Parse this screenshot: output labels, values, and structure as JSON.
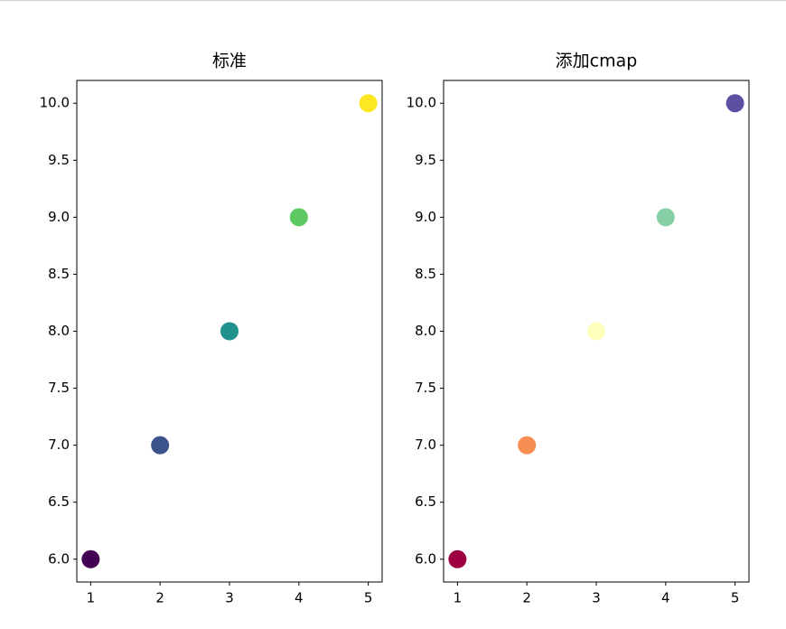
{
  "chart_data": [
    {
      "type": "scatter",
      "title": "标准",
      "x": [
        1,
        2,
        3,
        4,
        5
      ],
      "values": [
        6,
        7,
        8,
        9,
        10
      ],
      "colors": [
        "#440154",
        "#3b528b",
        "#21918c",
        "#5ec962",
        "#fde725"
      ],
      "xlim": [
        0.8,
        5.2
      ],
      "ylim": [
        5.8,
        10.2
      ],
      "xticks": [
        1,
        2,
        3,
        4,
        5
      ],
      "yticks": [
        {
          "value": 6,
          "label": "6.0"
        },
        {
          "value": 6.5,
          "label": "6.5"
        },
        {
          "value": 7,
          "label": "7.0"
        },
        {
          "value": 7.5,
          "label": "7.5"
        },
        {
          "value": 8,
          "label": "8.0"
        },
        {
          "value": 8.5,
          "label": "8.5"
        },
        {
          "value": 9,
          "label": "9.0"
        },
        {
          "value": 9.5,
          "label": "9.5"
        },
        {
          "value": 10,
          "label": "10.0"
        }
      ]
    },
    {
      "type": "scatter",
      "title": "添加cmap",
      "x": [
        1,
        2,
        3,
        4,
        5
      ],
      "values": [
        6,
        7,
        8,
        9,
        10
      ],
      "colors": [
        "#9e0142",
        "#f98e52",
        "#ffffbe",
        "#86cfa5",
        "#5e4fa2"
      ],
      "xlim": [
        0.8,
        5.2
      ],
      "ylim": [
        5.8,
        10.2
      ],
      "xticks": [
        1,
        2,
        3,
        4,
        5
      ],
      "yticks": [
        {
          "value": 6,
          "label": "6.0"
        },
        {
          "value": 6.5,
          "label": "6.5"
        },
        {
          "value": 7,
          "label": "7.0"
        },
        {
          "value": 7.5,
          "label": "7.5"
        },
        {
          "value": 8,
          "label": "8.0"
        },
        {
          "value": 8.5,
          "label": "8.5"
        },
        {
          "value": 9,
          "label": "9.0"
        },
        {
          "value": 9.5,
          "label": "9.5"
        },
        {
          "value": 10,
          "label": "10.0"
        }
      ]
    }
  ]
}
